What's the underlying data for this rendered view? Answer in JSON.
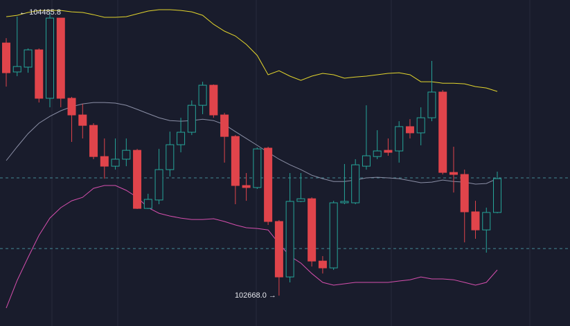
{
  "chart_data": {
    "type": "candlestick",
    "ylim": [
      102473,
      104566
    ],
    "up_color": "#26a69a",
    "down_color": "#e0444b",
    "open": [
      104290,
      104104,
      104135,
      104246,
      103935,
      104450,
      103935,
      103828,
      103761,
      103561,
      103499,
      103544,
      103601,
      103228,
      103282,
      103477,
      103637,
      103717,
      103890,
      104019,
      103828,
      103690,
      103375,
      103362,
      103615,
      103144,
      102788,
      103273,
      103290,
      102890,
      102846,
      103264,
      103264,
      103499,
      103561,
      103601,
      103597,
      103753,
      103713,
      103810,
      103975,
      103459,
      103446,
      103206,
      103090,
      103202
    ],
    "high": [
      104321,
      104459,
      104255,
      104255,
      104485.8,
      104450,
      103944,
      103899,
      103775,
      103677,
      103677,
      103677,
      103610,
      103322,
      103610,
      103721,
      103810,
      103921,
      104041,
      104024,
      103841,
      103699,
      103455,
      103619,
      103624,
      103153,
      103455,
      103455,
      103299,
      102922,
      103277,
      103513,
      103544,
      103890,
      103730,
      103677,
      103788,
      103801,
      103877,
      104175,
      103988,
      103624,
      103477,
      103277,
      103233,
      103464
    ],
    "low": [
      104010,
      104077,
      104099,
      103908,
      103877,
      103877,
      103655,
      103677,
      103544,
      103419,
      103477,
      103499,
      103224,
      103224,
      103255,
      103433,
      103588,
      103699,
      103833,
      103810,
      103522,
      103255,
      103277,
      103353,
      103122,
      102668.0,
      102753,
      103268,
      102855,
      102810,
      102833,
      103255,
      103255,
      103477,
      103544,
      103566,
      103522,
      103677,
      103633,
      103788,
      103446,
      103330,
      103010,
      103033,
      102944,
      103197
    ],
    "close": [
      104099,
      104139,
      104246,
      103935,
      104450,
      103935,
      103828,
      103761,
      103561,
      103499,
      103544,
      103601,
      103228,
      103286,
      103477,
      103637,
      103717,
      103890,
      104019,
      103828,
      103690,
      103375,
      103362,
      103610,
      103144,
      102788,
      103273,
      103290,
      102890,
      102846,
      103264,
      103273,
      103508,
      103566,
      103597,
      103588,
      103753,
      103713,
      103810,
      103975,
      103459,
      103446,
      103206,
      103090,
      103202,
      103419
    ],
    "bands": [
      {
        "color": "#e3d52c",
        "values": [
          104459,
          104468,
          104486,
          104499,
          104499,
          104499,
          104490,
          104486,
          104472,
          104455,
          104455,
          104459,
          104477,
          104495,
          104504,
          104504,
          104499,
          104490,
          104468,
          104410,
          104366,
          104335,
          104281,
          104210,
          104086,
          104112,
          104077,
          104050,
          104077,
          104095,
          104086,
          104064,
          104072,
          104077,
          104086,
          104095,
          104099,
          104086,
          104041,
          104041,
          104032,
          104032,
          104028,
          104010,
          104001,
          103979
        ]
      },
      {
        "color": "#8b8fa6",
        "values": [
          103535,
          103624,
          103708,
          103775,
          103819,
          103855,
          103881,
          103899,
          103908,
          103908,
          103904,
          103890,
          103864,
          103837,
          103810,
          103792,
          103788,
          103792,
          103801,
          103792,
          103766,
          103721,
          103677,
          103633,
          103588,
          103544,
          103508,
          103477,
          103441,
          103419,
          103401,
          103401,
          103410,
          103424,
          103428,
          103424,
          103419,
          103406,
          103393,
          103397,
          103410,
          103401,
          103397,
          103384,
          103388,
          103419
        ]
      },
      {
        "color": "#d64fae",
        "values": [
          102588,
          102766,
          102913,
          103055,
          103166,
          103233,
          103277,
          103299,
          103357,
          103375,
          103375,
          103344,
          103299,
          103233,
          103197,
          103179,
          103166,
          103157,
          103157,
          103162,
          103144,
          103122,
          103104,
          103099,
          103090,
          103002,
          102922,
          102877,
          102810,
          102753,
          102735,
          102744,
          102753,
          102753,
          102753,
          102753,
          102762,
          102770,
          102788,
          102775,
          102775,
          102770,
          102753,
          102735,
          102753,
          102833
        ]
      }
    ],
    "price_lines": [
      103424,
      102970
    ],
    "price_line_color": "#4fa6b0",
    "max_label": "← 104485.8",
    "min_label": "102668.0 →"
  }
}
